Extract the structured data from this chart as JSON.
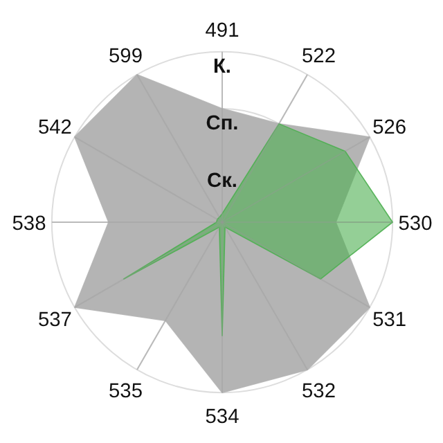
{
  "chart_data": {
    "type": "radar",
    "categories": [
      "491",
      "522",
      "526",
      "530",
      "531",
      "532",
      "534",
      "535",
      "537",
      "538",
      "542",
      "599"
    ],
    "ylim": [
      0,
      3
    ],
    "yticks": [
      {
        "value": 1,
        "label": "Ск."
      },
      {
        "value": 2,
        "label": "Сп."
      },
      {
        "value": 3,
        "label": "К."
      }
    ],
    "grid": true,
    "series": [
      {
        "color": "#b4b4b4",
        "values": [
          2,
          2,
          3,
          2,
          3,
          3,
          3,
          2,
          3,
          2,
          3,
          3
        ]
      },
      {
        "color": "#4caf50",
        "values": [
          0.15,
          2,
          2.5,
          3,
          2,
          0.1,
          2,
          0.1,
          2,
          0.1,
          0.1,
          0.1
        ]
      }
    ]
  }
}
